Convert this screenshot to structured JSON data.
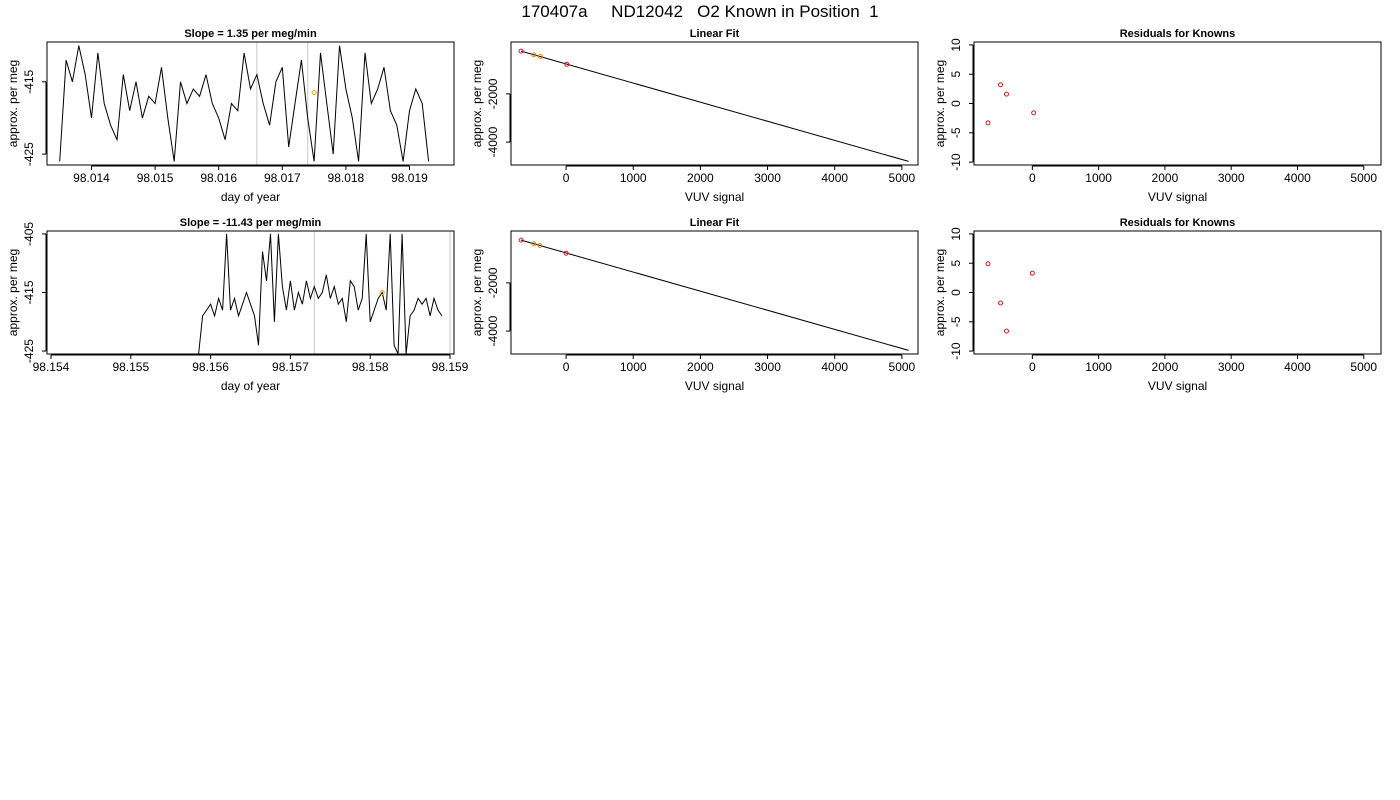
{
  "page_title": "170407a     ND12042   O2 Known in Position  1",
  "chart_data": [
    {
      "type": "line",
      "title": "Slope =  1.35  per meg/min",
      "xlabel": "day of year",
      "ylabel": "approx. per meg",
      "xlim": [
        98.0133,
        98.0197
      ],
      "ylim": [
        -426.5,
        -409.5
      ],
      "x_ticks": [
        98.014,
        98.015,
        98.016,
        98.017,
        98.018,
        98.019
      ],
      "x_tick_labels": [
        "98.014",
        "98.015",
        "98.016",
        "98.017",
        "98.018",
        "98.019"
      ],
      "y_ticks": [
        -415,
        -425
      ],
      "y_tick_labels": [
        "-415",
        "-425"
      ],
      "vlines": [
        98.0166,
        98.0174
      ],
      "series": [
        {
          "x": [
            98.0135,
            98.0136,
            98.0137,
            98.0138,
            98.0139,
            98.014,
            98.0141,
            98.0142,
            98.0143,
            98.0144,
            98.0145,
            98.0146,
            98.0147,
            98.0148,
            98.0149,
            98.015,
            98.0151,
            98.0152,
            98.0153,
            98.0154,
            98.0155,
            98.0156,
            98.0157,
            98.0158,
            98.0159,
            98.016,
            98.0161,
            98.0162,
            98.0163,
            98.0164,
            98.0165,
            98.0166,
            98.0167,
            98.0168,
            98.0169,
            98.017,
            98.0171,
            98.0172,
            98.0173,
            98.0174,
            98.0175,
            98.0176,
            98.0177,
            98.0178,
            98.0179,
            98.018,
            98.0181,
            98.0182,
            98.0183,
            98.0184,
            98.0185,
            98.0186,
            98.0187,
            98.0188,
            98.0189,
            98.019,
            98.0191,
            98.0192,
            98.0193
          ],
          "y": [
            -426,
            -412,
            -415,
            -410,
            -414,
            -420,
            -411,
            -418,
            -421,
            -423,
            -414,
            -419,
            -415,
            -420,
            -417,
            -418,
            -413,
            -420,
            -426,
            -415,
            -418,
            -416,
            -417,
            -414,
            -418,
            -420,
            -423,
            -418,
            -419,
            -411,
            -416,
            -414,
            -418,
            -421,
            -415,
            -413,
            -424,
            -418,
            -412,
            -420,
            -426,
            -411,
            -418,
            -425,
            -410,
            -416,
            -420,
            -426,
            -411,
            -418,
            -416,
            -413,
            -419,
            -421,
            -426,
            -419,
            -416,
            -418,
            -426
          ]
        }
      ],
      "highlight_point": {
        "x": 98.0175,
        "y": -416.5
      }
    },
    {
      "type": "scatter",
      "title": "Linear Fit",
      "xlabel": "VUV signal",
      "ylabel": "approx. per meg",
      "xlim": [
        -820,
        5240
      ],
      "ylim": [
        -4950,
        150
      ],
      "x_ticks": [
        0,
        1000,
        2000,
        3000,
        4000,
        5000
      ],
      "x_tick_labels": [
        "0",
        "1000",
        "2000",
        "3000",
        "4000",
        "5000"
      ],
      "y_ticks": [
        -2000,
        -4000
      ],
      "y_tick_labels": [
        "-2000",
        "-4000"
      ],
      "fit_line": {
        "x": [
          -670,
          5100
        ],
        "y": [
          -230,
          -4800
        ]
      },
      "points": {
        "x": [
          -670,
          -480,
          -380,
          10
        ],
        "y": [
          -230,
          -380,
          -450,
          -770
        ]
      }
    },
    {
      "type": "scatter",
      "title": "Residuals for Knowns",
      "xlabel": "VUV signal",
      "ylabel": "approx. per meg",
      "xlim": [
        -880,
        5260
      ],
      "ylim": [
        -10.5,
        10.5
      ],
      "x_ticks": [
        0,
        1000,
        2000,
        3000,
        4000,
        5000
      ],
      "x_tick_labels": [
        "0",
        "1000",
        "2000",
        "3000",
        "4000",
        "5000"
      ],
      "y_ticks": [
        10,
        5,
        0,
        -5,
        -10
      ],
      "y_tick_labels": [
        "10",
        "5",
        "0",
        "-5",
        "-10"
      ],
      "points": {
        "x": [
          -670,
          -480,
          -390,
          20
        ],
        "y": [
          -3.3,
          3.2,
          1.6,
          -1.6
        ]
      }
    },
    {
      "type": "line",
      "title": "Slope =  -11.43  per meg/min",
      "xlabel": "day of year",
      "ylabel": "approx. per meg",
      "xlim": [
        98.15395,
        98.15905
      ],
      "ylim": [
        -425.5,
        -404.5
      ],
      "x_ticks": [
        98.154,
        98.155,
        98.156,
        98.157,
        98.158,
        98.159
      ],
      "x_tick_labels": [
        "98.154",
        "98.155",
        "98.156",
        "98.157",
        "98.158",
        "98.159"
      ],
      "y_ticks": [
        -405,
        -415,
        -425
      ],
      "y_tick_labels": [
        "-405",
        "-415",
        "-425"
      ],
      "vlines": [
        98.1573,
        98.159
      ],
      "series": [
        {
          "x": [
            98.15585,
            98.1559,
            98.15595,
            98.156,
            98.15605,
            98.1561,
            98.15615,
            98.1562,
            98.15625,
            98.1563,
            98.15635,
            98.1564,
            98.15645,
            98.1565,
            98.15655,
            98.1566,
            98.15665,
            98.1567,
            98.15675,
            98.1568,
            98.15685,
            98.1569,
            98.15695,
            98.157,
            98.15705,
            98.1571,
            98.15715,
            98.1572,
            98.15725,
            98.1573,
            98.15735,
            98.1574,
            98.15745,
            98.1575,
            98.15755,
            98.1576,
            98.15765,
            98.1577,
            98.15775,
            98.1578,
            98.15785,
            98.1579,
            98.15795,
            98.158,
            98.15805,
            98.1581,
            98.15815,
            98.1582,
            98.15825,
            98.1583,
            98.15835,
            98.1584,
            98.15845,
            98.1585,
            98.15855,
            98.1586,
            98.15865,
            98.1587,
            98.15875,
            98.1588,
            98.15885,
            98.1589
          ],
          "y": [
            -425.5,
            -419,
            -418,
            -417,
            -419,
            -416,
            -418,
            -405,
            -418,
            -416,
            -419,
            -417,
            -415,
            -417,
            -419,
            -424,
            -408,
            -413,
            -405,
            -420,
            -405,
            -414,
            -418,
            -413,
            -418,
            -415,
            -417,
            -413,
            -416,
            -414,
            -416,
            -415,
            -412,
            -416,
            -414,
            -417,
            -416,
            -420,
            -413,
            -414,
            -418,
            -416,
            -405,
            -420,
            -418,
            -416,
            -415,
            -418,
            -405,
            -424,
            -425.5,
            -405,
            -425.5,
            -419,
            -418,
            -416,
            -417,
            -416,
            -419,
            -416,
            -418,
            -419
          ]
        }
      ],
      "highlight_point": {
        "x": 98.15815,
        "y": -415
      }
    },
    {
      "type": "scatter",
      "title": "Linear Fit",
      "xlabel": "VUV signal",
      "ylabel": "approx. per meg",
      "xlim": [
        -820,
        5240
      ],
      "ylim": [
        -4950,
        150
      ],
      "x_ticks": [
        0,
        1000,
        2000,
        3000,
        4000,
        5000
      ],
      "x_tick_labels": [
        "0",
        "1000",
        "2000",
        "3000",
        "4000",
        "5000"
      ],
      "y_ticks": [
        -2000,
        -4000
      ],
      "y_tick_labels": [
        "-2000",
        "-4000"
      ],
      "fit_line": {
        "x": [
          -670,
          5100
        ],
        "y": [
          -230,
          -4800
        ]
      },
      "points": {
        "x": [
          -670,
          -480,
          -390,
          0
        ],
        "y": [
          -230,
          -380,
          -450,
          -770
        ]
      }
    },
    {
      "type": "scatter",
      "title": "Residuals for Knowns",
      "xlabel": "VUV signal",
      "ylabel": "approx. per meg",
      "xlim": [
        -880,
        5260
      ],
      "ylim": [
        -10.5,
        10.5
      ],
      "x_ticks": [
        0,
        1000,
        2000,
        3000,
        4000,
        5000
      ],
      "x_tick_labels": [
        "0",
        "1000",
        "2000",
        "3000",
        "4000",
        "5000"
      ],
      "y_ticks": [
        10,
        5,
        0,
        -5,
        -10
      ],
      "y_tick_labels": [
        "10",
        "5",
        "0",
        "-5",
        "-10"
      ],
      "points": {
        "x": [
          -670,
          -480,
          -390,
          0
        ],
        "y": [
          4.9,
          -1.8,
          -6.6,
          3.3
        ]
      }
    }
  ]
}
